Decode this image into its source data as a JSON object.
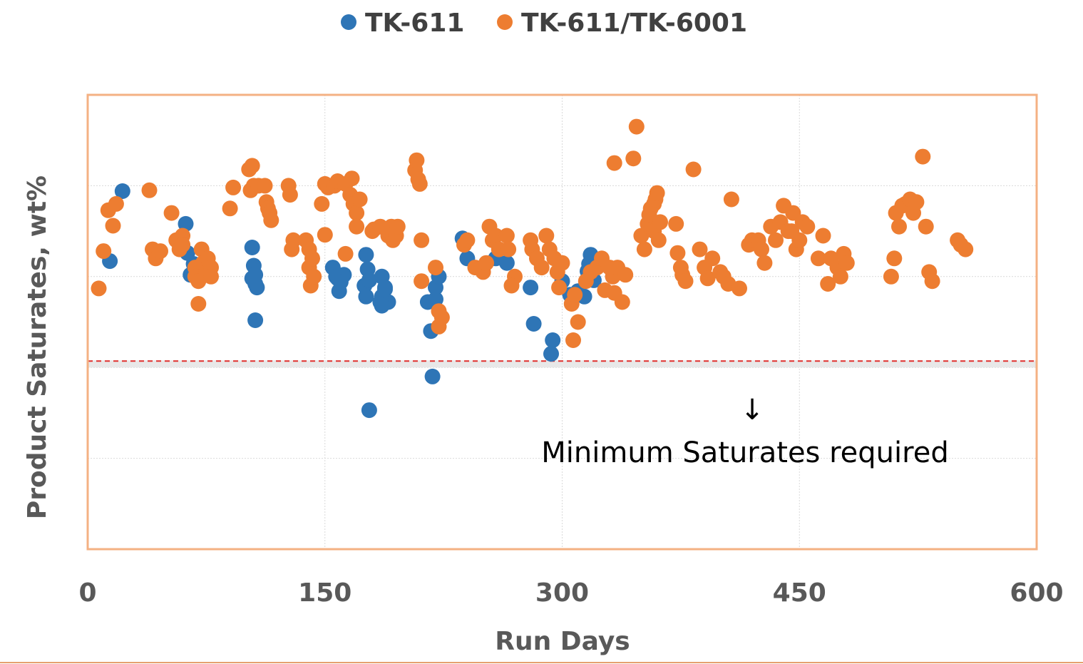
{
  "chart_data": {
    "type": "scatter",
    "title": "",
    "xlabel": "Run Days",
    "ylabel": "Product Saturates, wt%",
    "xlim": [
      0,
      600
    ],
    "x_ticks": [
      "0",
      "150",
      "300",
      "450",
      "600"
    ],
    "ylim": [
      0,
      5
    ],
    "y_ticks_labeled": false,
    "grid": true,
    "legend": "top-center",
    "threshold": {
      "label": "Minimum Saturates required",
      "y": 2.07,
      "arrow": "↓",
      "color": "#e0302e"
    },
    "colors": {
      "border": "#f4b183",
      "grid": "#d9d9d9",
      "bottom_rule": "#e5a06e"
    },
    "series": [
      {
        "name": "TK-611",
        "color": "#2e75b6",
        "points": [
          [
            14,
            3.17
          ],
          [
            22,
            3.94
          ],
          [
            62,
            3.58
          ],
          [
            63,
            3.26
          ],
          [
            65,
            3.02
          ],
          [
            67,
            3.14
          ],
          [
            70,
            3.1
          ],
          [
            104,
            3.32
          ],
          [
            105,
            3.12
          ],
          [
            106,
            2.92
          ],
          [
            104,
            2.98
          ],
          [
            106,
            3.02
          ],
          [
            107,
            2.88
          ],
          [
            106,
            2.52
          ],
          [
            155,
            3.1
          ],
          [
            158,
            2.98
          ],
          [
            159,
            2.84
          ],
          [
            157,
            3.0
          ],
          [
            162,
            3.02
          ],
          [
            160,
            2.94
          ],
          [
            176,
            3.24
          ],
          [
            177,
            3.08
          ],
          [
            175,
            2.9
          ],
          [
            176,
            2.78
          ],
          [
            178,
            2.96
          ],
          [
            178,
            1.53
          ],
          [
            186,
            3.0
          ],
          [
            188,
            2.88
          ],
          [
            186,
            2.78
          ],
          [
            190,
            2.72
          ],
          [
            185,
            2.72
          ],
          [
            188,
            2.86
          ],
          [
            186,
            2.68
          ],
          [
            215,
            2.72
          ],
          [
            217,
            2.4
          ],
          [
            220,
            2.88
          ],
          [
            222,
            3.0
          ],
          [
            220,
            2.75
          ],
          [
            218,
            1.9
          ],
          [
            237,
            3.42
          ],
          [
            240,
            3.2
          ],
          [
            250,
            3.1
          ],
          [
            258,
            3.2
          ],
          [
            265,
            3.15
          ],
          [
            280,
            2.88
          ],
          [
            282,
            2.48
          ],
          [
            294,
            2.3
          ],
          [
            293,
            2.15
          ],
          [
            300,
            2.95
          ],
          [
            305,
            2.8
          ],
          [
            310,
            2.84
          ],
          [
            314,
            2.78
          ],
          [
            316,
            3.06
          ],
          [
            318,
            3.24
          ],
          [
            320,
            2.96
          ],
          [
            317,
            3.14
          ]
        ]
      },
      {
        "name": "TK-611/TK-6001",
        "color": "#ed7d31",
        "points": [
          [
            7,
            2.87
          ],
          [
            10,
            3.28
          ],
          [
            13,
            3.73
          ],
          [
            16,
            3.56
          ],
          [
            18,
            3.8
          ],
          [
            39,
            3.95
          ],
          [
            41,
            3.3
          ],
          [
            43,
            3.2
          ],
          [
            46,
            3.28
          ],
          [
            53,
            3.7
          ],
          [
            56,
            3.4
          ],
          [
            58,
            3.3
          ],
          [
            60,
            3.45
          ],
          [
            60,
            3.35
          ],
          [
            68,
            3.1
          ],
          [
            68,
            3.0
          ],
          [
            70,
            2.95
          ],
          [
            70,
            2.7
          ],
          [
            72,
            3.3
          ],
          [
            73,
            3.15
          ],
          [
            75,
            3.05
          ],
          [
            76,
            3.2
          ],
          [
            78,
            3.1
          ],
          [
            78,
            3.0
          ],
          [
            90,
            3.75
          ],
          [
            92,
            3.98
          ],
          [
            102,
            4.18
          ],
          [
            103,
            3.95
          ],
          [
            104,
            4.22
          ],
          [
            105,
            4.0
          ],
          [
            108,
            4.0
          ],
          [
            112,
            4.0
          ],
          [
            113,
            3.82
          ],
          [
            114,
            3.75
          ],
          [
            115,
            3.7
          ],
          [
            116,
            3.62
          ],
          [
            127,
            4.0
          ],
          [
            128,
            3.9
          ],
          [
            129,
            3.3
          ],
          [
            130,
            3.4
          ],
          [
            138,
            3.4
          ],
          [
            140,
            3.3
          ],
          [
            140,
            3.1
          ],
          [
            141,
            2.9
          ],
          [
            142,
            3.2
          ],
          [
            143,
            3.0
          ],
          [
            148,
            3.8
          ],
          [
            150,
            3.46
          ],
          [
            150,
            4.02
          ],
          [
            152,
            3.98
          ],
          [
            156,
            4.0
          ],
          [
            158,
            4.05
          ],
          [
            163,
            4.02
          ],
          [
            166,
            3.9
          ],
          [
            167,
            4.08
          ],
          [
            168,
            3.8
          ],
          [
            170,
            3.7
          ],
          [
            170,
            3.55
          ],
          [
            172,
            3.85
          ],
          [
            163,
            3.25
          ],
          [
            180,
            3.5
          ],
          [
            181,
            3.52
          ],
          [
            185,
            3.55
          ],
          [
            190,
            3.45
          ],
          [
            192,
            3.55
          ],
          [
            193,
            3.4
          ],
          [
            195,
            3.45
          ],
          [
            196,
            3.55
          ],
          [
            207,
            4.17
          ],
          [
            208,
            4.28
          ],
          [
            209,
            4.07
          ],
          [
            210,
            4.02
          ],
          [
            211,
            3.4
          ],
          [
            211,
            2.95
          ],
          [
            220,
            3.1
          ],
          [
            222,
            2.62
          ],
          [
            224,
            2.55
          ],
          [
            222,
            2.45
          ],
          [
            238,
            3.35
          ],
          [
            240,
            3.4
          ],
          [
            245,
            3.1
          ],
          [
            250,
            3.05
          ],
          [
            252,
            3.15
          ],
          [
            254,
            3.55
          ],
          [
            256,
            3.4
          ],
          [
            258,
            3.45
          ],
          [
            260,
            3.3
          ],
          [
            265,
            3.45
          ],
          [
            266,
            3.3
          ],
          [
            270,
            3.0
          ],
          [
            268,
            2.9
          ],
          [
            280,
            3.4
          ],
          [
            281,
            3.3
          ],
          [
            284,
            3.2
          ],
          [
            287,
            3.1
          ],
          [
            290,
            3.45
          ],
          [
            292,
            3.3
          ],
          [
            295,
            3.2
          ],
          [
            297,
            3.05
          ],
          [
            300,
            3.15
          ],
          [
            298,
            2.88
          ],
          [
            306,
            2.7
          ],
          [
            308,
            2.8
          ],
          [
            310,
            2.5
          ],
          [
            307,
            2.3
          ],
          [
            315,
            2.95
          ],
          [
            318,
            3.05
          ],
          [
            322,
            3.1
          ],
          [
            325,
            3.2
          ],
          [
            327,
            2.85
          ],
          [
            330,
            3.1
          ],
          [
            332,
            3.0
          ],
          [
            333,
            2.82
          ],
          [
            335,
            3.1
          ],
          [
            338,
            2.72
          ],
          [
            340,
            3.02
          ],
          [
            333,
            4.25
          ],
          [
            345,
            4.3
          ],
          [
            347,
            4.65
          ],
          [
            350,
            3.45
          ],
          [
            352,
            3.3
          ],
          [
            354,
            3.58
          ],
          [
            355,
            3.68
          ],
          [
            356,
            3.75
          ],
          [
            358,
            3.8
          ],
          [
            359,
            3.85
          ],
          [
            360,
            3.92
          ],
          [
            358,
            3.5
          ],
          [
            361,
            3.4
          ],
          [
            362,
            3.6
          ],
          [
            372,
            3.58
          ],
          [
            373,
            3.26
          ],
          [
            375,
            3.1
          ],
          [
            376,
            3.02
          ],
          [
            378,
            2.95
          ],
          [
            383,
            4.18
          ],
          [
            387,
            3.3
          ],
          [
            390,
            3.1
          ],
          [
            392,
            2.98
          ],
          [
            395,
            3.2
          ],
          [
            400,
            3.05
          ],
          [
            402,
            3.0
          ],
          [
            405,
            2.92
          ],
          [
            407,
            3.85
          ],
          [
            412,
            2.87
          ],
          [
            418,
            3.35
          ],
          [
            420,
            3.4
          ],
          [
            424,
            3.4
          ],
          [
            426,
            3.3
          ],
          [
            428,
            3.15
          ],
          [
            432,
            3.55
          ],
          [
            435,
            3.4
          ],
          [
            438,
            3.6
          ],
          [
            440,
            3.78
          ],
          [
            443,
            3.5
          ],
          [
            445,
            3.5
          ],
          [
            446,
            3.7
          ],
          [
            448,
            3.3
          ],
          [
            450,
            3.4
          ],
          [
            452,
            3.6
          ],
          [
            455,
            3.55
          ],
          [
            462,
            3.2
          ],
          [
            465,
            3.45
          ],
          [
            468,
            2.92
          ],
          [
            470,
            3.2
          ],
          [
            474,
            3.1
          ],
          [
            476,
            3.0
          ],
          [
            478,
            3.25
          ],
          [
            480,
            3.15
          ],
          [
            508,
            3.0
          ],
          [
            510,
            3.2
          ],
          [
            511,
            3.7
          ],
          [
            513,
            3.55
          ],
          [
            515,
            3.78
          ],
          [
            517,
            3.8
          ],
          [
            520,
            3.85
          ],
          [
            522,
            3.7
          ],
          [
            524,
            3.82
          ],
          [
            528,
            4.32
          ],
          [
            530,
            3.55
          ],
          [
            532,
            3.05
          ],
          [
            534,
            2.95
          ],
          [
            550,
            3.4
          ],
          [
            552,
            3.35
          ],
          [
            555,
            3.3
          ]
        ]
      }
    ]
  }
}
